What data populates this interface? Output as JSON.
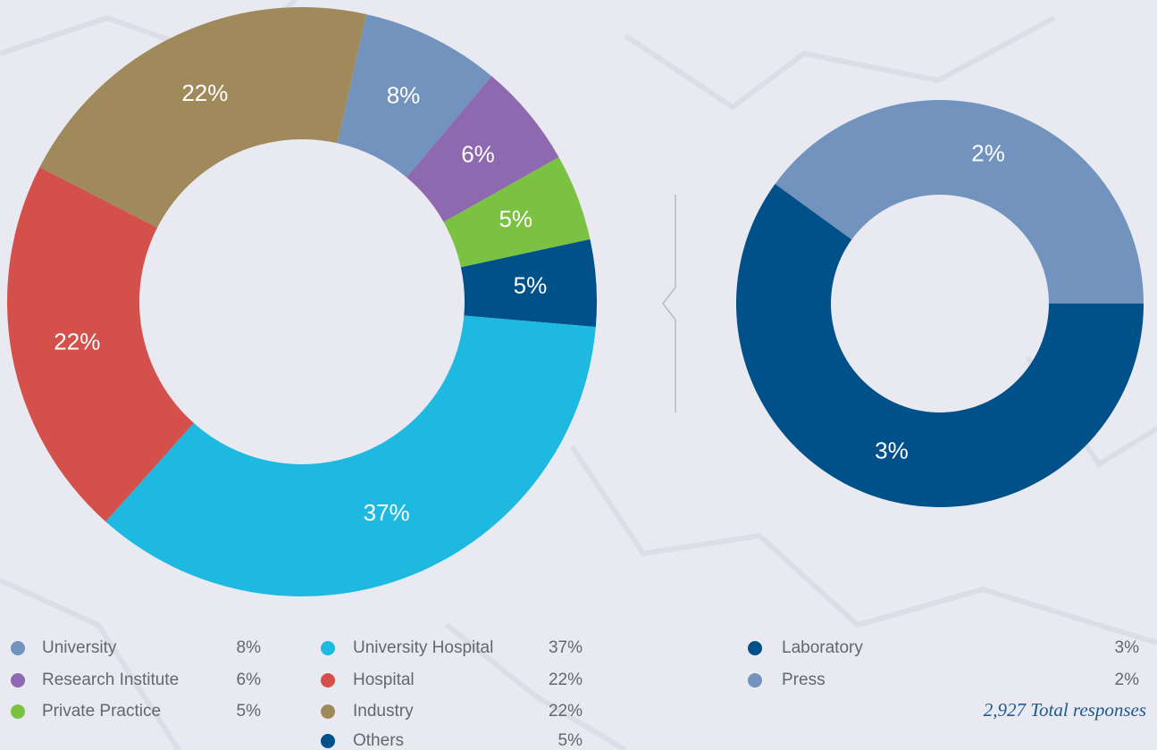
{
  "chart_data": [
    {
      "type": "donut",
      "categories": [
        "University",
        "Research Institute",
        "Private Practice",
        "Others",
        "University Hospital",
        "Hospital",
        "Industry"
      ],
      "values": [
        8,
        6,
        5,
        5,
        37,
        22,
        22
      ],
      "value_labels": [
        "8%",
        "6%",
        "5%",
        "5%",
        "37%",
        "22%",
        "22%"
      ],
      "colors": [
        "#7193bd",
        "#8f69b0",
        "#7bc142",
        "#005189",
        "#1db9e0",
        "#d4504a",
        "#a08a5c"
      ]
    },
    {
      "type": "donut",
      "categories": [
        "Laboratory",
        "Press"
      ],
      "values": [
        3,
        2
      ],
      "value_labels": [
        "3%",
        "2%"
      ],
      "colors": [
        "#005189",
        "#7193bd"
      ],
      "note": "2,927 Total responses"
    }
  ]
}
